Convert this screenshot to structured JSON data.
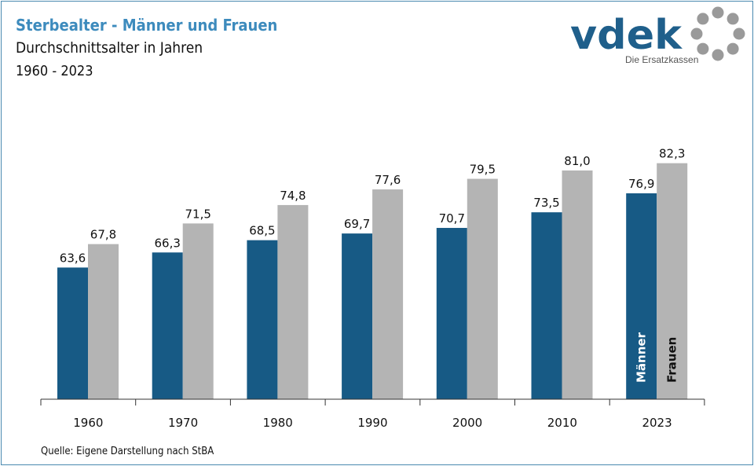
{
  "header": {
    "title": "Sterbealter - Männer und Frauen",
    "subtitle": "Durchschnittsalter  in Jahren",
    "range": "1960 - 2023"
  },
  "logo": {
    "wordmark": "vdek",
    "tagline": "Die Ersatzkassen",
    "icon": "ring-of-dots-icon"
  },
  "footer": {
    "source": "Quelle: Eigene Darstellung nach StBA"
  },
  "colors": {
    "maenner": "#175a85",
    "frauen": "#b4b4b4",
    "title": "#3d8bbd",
    "logo": "#1f5f8b"
  },
  "chart_data": {
    "type": "bar",
    "categories": [
      "1960",
      "1970",
      "1980",
      "1990",
      "2000",
      "2010",
      "2023"
    ],
    "series": [
      {
        "name": "Männer",
        "values": [
          63.6,
          66.3,
          68.5,
          69.7,
          70.7,
          73.5,
          76.9
        ],
        "labels": [
          "63,6",
          "66,3",
          "68,5",
          "69,7",
          "70,7",
          "73,5",
          "76,9"
        ]
      },
      {
        "name": "Frauen",
        "values": [
          67.8,
          71.5,
          74.8,
          77.6,
          79.5,
          81.0,
          82.3
        ],
        "labels": [
          "67,8",
          "71,5",
          "74,8",
          "77,6",
          "79,5",
          "81,0",
          "82,3"
        ]
      }
    ],
    "title": "Sterbealter - Männer und Frauen",
    "xlabel": "",
    "ylabel": "",
    "grid": false,
    "legend": "inside-last-group"
  }
}
